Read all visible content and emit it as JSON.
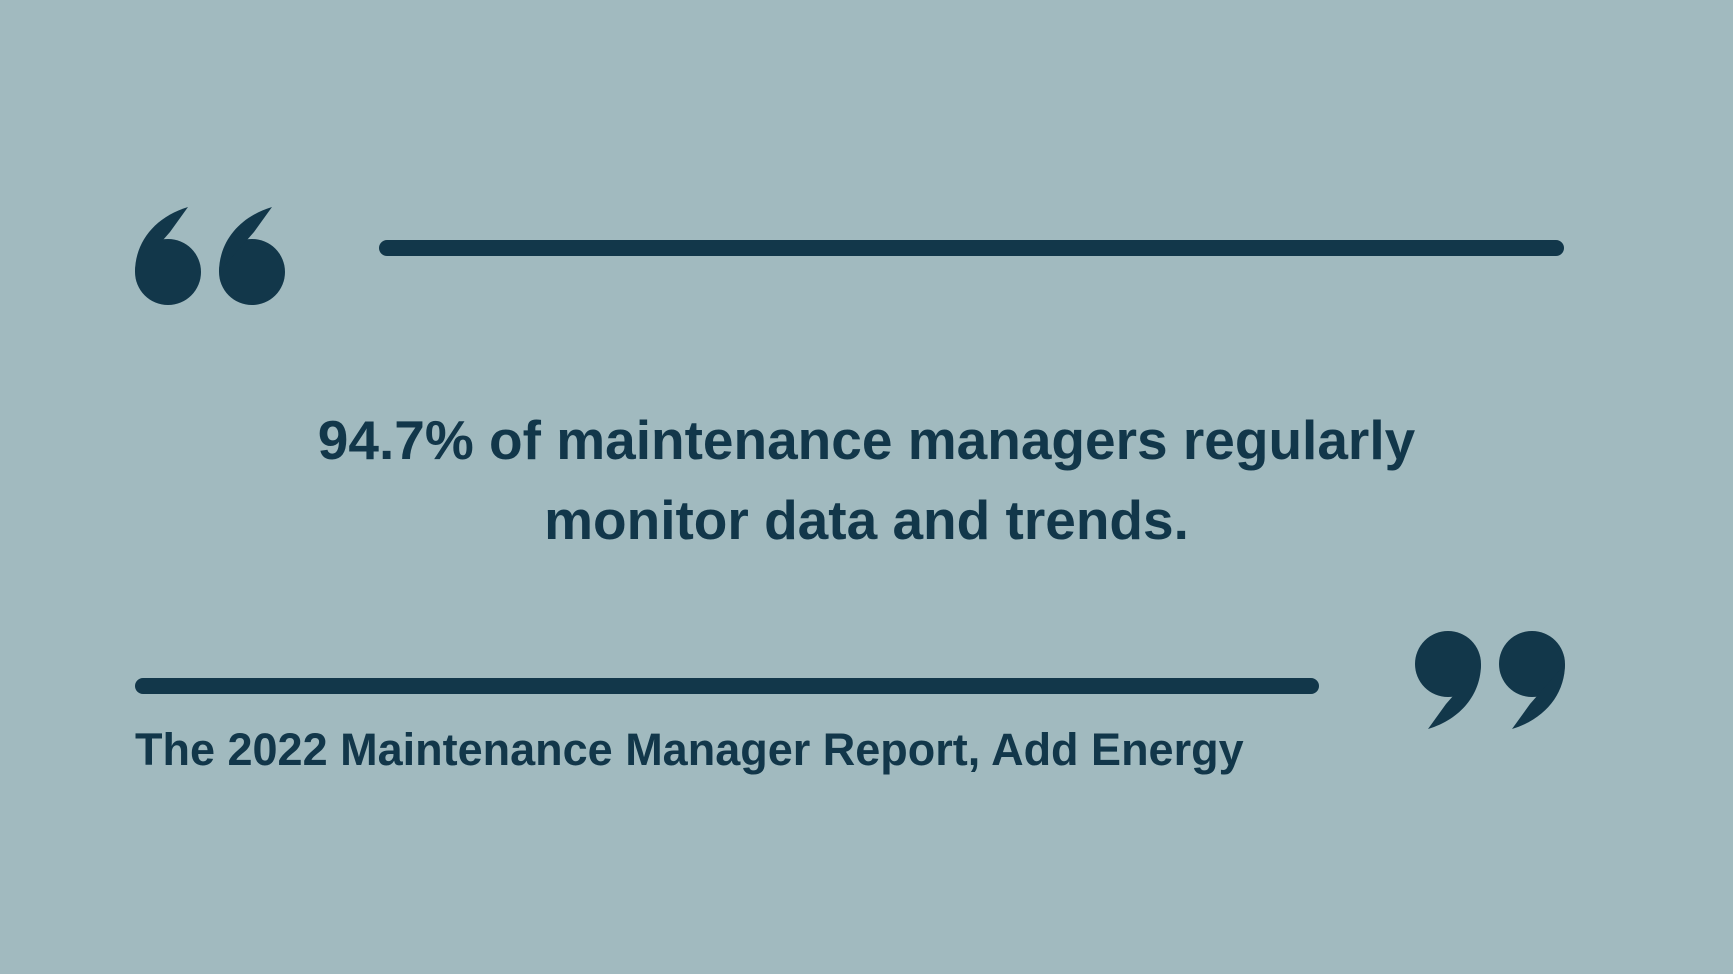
{
  "quote": {
    "line1": "94.7% of maintenance managers regularly",
    "line2": "monitor data and trends."
  },
  "citation": "The 2022 Maintenance Manager Report, Add Energy",
  "icons": {
    "open": "open-quote-icon",
    "close": "close-quote-icon"
  },
  "colors": {
    "background": "#a1babf",
    "accent": "#12374a"
  }
}
